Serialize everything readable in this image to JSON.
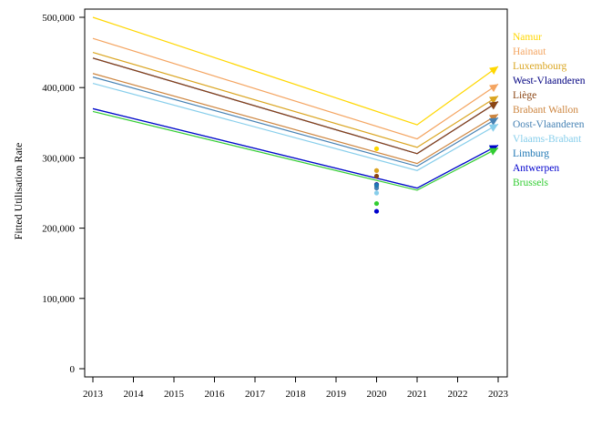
{
  "chart_data": {
    "type": "line",
    "ylabel": "Fitted Utilisation Rate",
    "xlabel": "",
    "x_ticks": [
      "2013",
      "2014",
      "2015",
      "2016",
      "2017",
      "2018",
      "2019",
      "2020",
      "2021",
      "2022",
      "2023"
    ],
    "y_ticks": [
      "0",
      "100,000",
      "200,000",
      "300,000",
      "400,000",
      "500,000"
    ],
    "xlim": [
      2013,
      2023
    ],
    "ylim": [
      0,
      500000
    ],
    "grid": false,
    "legend_position": "right",
    "x": [
      2013,
      2021,
      2023
    ],
    "series": [
      {
        "name": "Namur",
        "color": "#ffd700",
        "values": [
          500000,
          347000,
          430000
        ],
        "observed": {
          "x": 2020,
          "value": 313000
        }
      },
      {
        "name": "Hainaut",
        "color": "#f4a460",
        "values": [
          470000,
          327000,
          405000
        ],
        "observed": {
          "x": 2020,
          "value": 282000
        }
      },
      {
        "name": "Luxembourg",
        "color": "#daa520",
        "values": [
          450000,
          315000,
          388000
        ],
        "observed": {
          "x": 2020,
          "value": 282000
        }
      },
      {
        "name": "West-Vlaanderen",
        "color": "#000080",
        "values": [
          442000,
          306000,
          380000
        ],
        "observed": {
          "x": 2020,
          "value": 262000
        }
      },
      {
        "name": "Liège",
        "color": "#8b4513",
        "values": [
          442000,
          306000,
          380000
        ],
        "observed": {
          "x": 2020,
          "value": 274000
        }
      },
      {
        "name": "Brabant Wallon",
        "color": "#cd853f",
        "values": [
          420000,
          292000,
          362000
        ],
        "observed": {
          "x": 2020,
          "value": 260000
        }
      },
      {
        "name": "Oost-Vlaanderen",
        "color": "#4682b4",
        "values": [
          415000,
          288000,
          357000
        ],
        "observed": {
          "x": 2020,
          "value": 257000
        }
      },
      {
        "name": "Vlaams-Brabant",
        "color": "#87ceeb",
        "values": [
          406000,
          282000,
          348000
        ],
        "observed": {
          "x": 2020,
          "value": 250000
        }
      },
      {
        "name": "Limburg",
        "color": "#1f77b4",
        "values": [
          370000,
          257000,
          318000
        ],
        "observed": {
          "x": 2020,
          "value": 261000
        }
      },
      {
        "name": "Antwerpen",
        "color": "#0000cd",
        "values": [
          370000,
          257000,
          318000
        ],
        "observed": {
          "x": 2020,
          "value": 224000
        }
      },
      {
        "name": "Brussels",
        "color": "#32cd32",
        "values": [
          366000,
          254000,
          314000
        ],
        "observed": {
          "x": 2020,
          "value": 235000
        }
      }
    ]
  }
}
